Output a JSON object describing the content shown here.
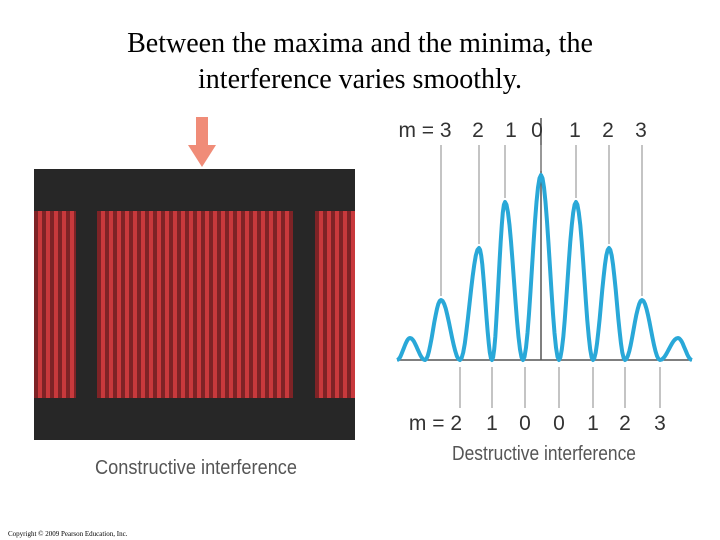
{
  "title": {
    "lines": [
      "Between the maxima and the minima, the",
      "interference varies smoothly."
    ]
  },
  "left_panel": {
    "caption": "Constructive interference"
  },
  "right_panel": {
    "top_labels": [
      "m = 3",
      "2",
      "1",
      "0",
      "1",
      "2",
      "3"
    ],
    "bottom_labels": [
      "m = 2",
      "1",
      "0",
      "0",
      "1",
      "2",
      "3"
    ],
    "caption": "Destructive interference"
  },
  "footer": {
    "copyright": "Copyright © 2009 Pearson Education, Inc."
  }
}
